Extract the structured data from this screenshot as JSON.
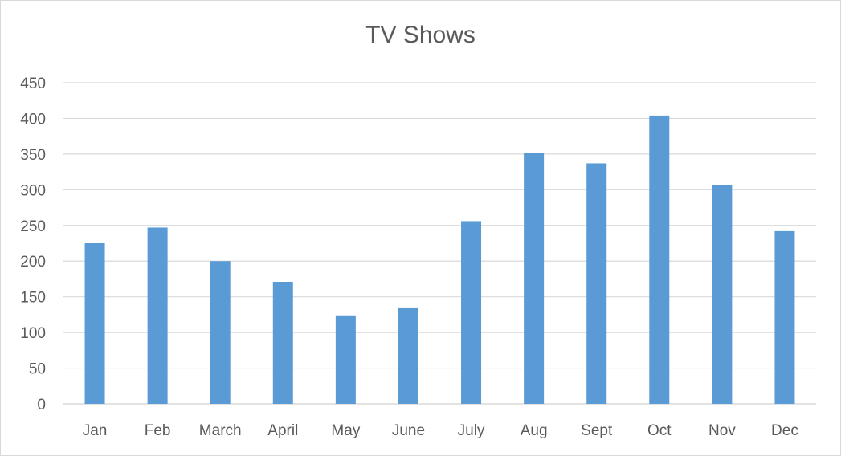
{
  "chart_data": {
    "type": "bar",
    "title": "TV Shows",
    "xlabel": "",
    "ylabel": "",
    "categories": [
      "Jan",
      "Feb",
      "March",
      "April",
      "May",
      "June",
      "July",
      "Aug",
      "Sept",
      "Oct",
      "Nov",
      "Dec"
    ],
    "values": [
      225,
      247,
      200,
      171,
      124,
      134,
      256,
      351,
      337,
      404,
      306,
      242
    ],
    "ylim": [
      0,
      450
    ],
    "yticks": [
      "0",
      "50",
      "100",
      "150",
      "200",
      "250",
      "300",
      "350",
      "400",
      "450"
    ],
    "grid": true,
    "legend": "none",
    "colors": {
      "bar": "#5b9bd5",
      "grid": "#d9d9d9",
      "text": "#595959"
    }
  }
}
